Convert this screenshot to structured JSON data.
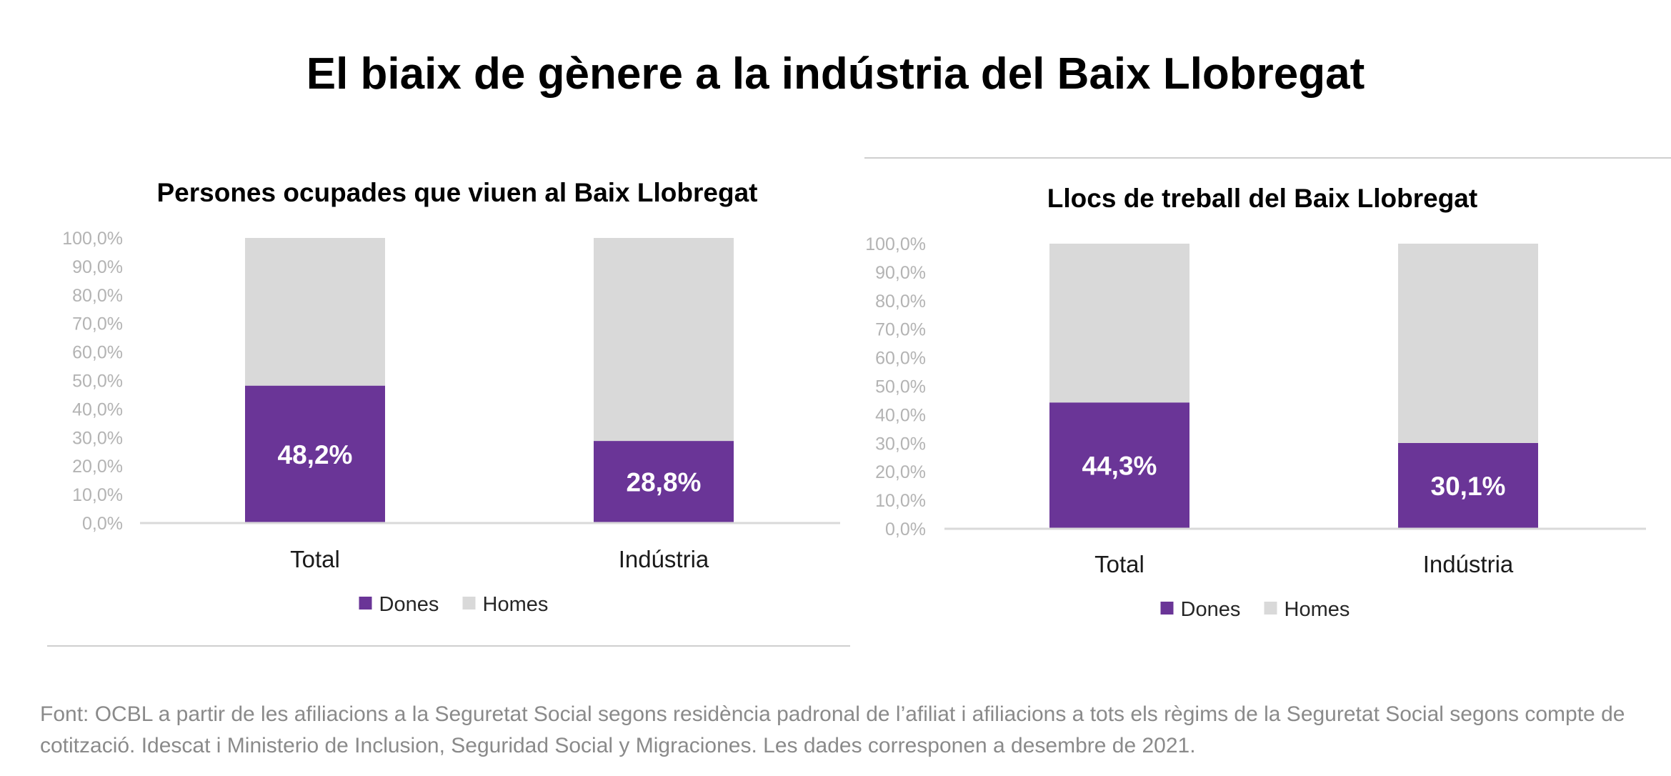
{
  "title": "El biaix de gènere a la indústria del Baix Llobregat",
  "chart_data": [
    {
      "type": "bar",
      "stacked": true,
      "title": "Persones ocupades que viuen al Baix Llobregat",
      "categories": [
        "Total",
        "Indústria"
      ],
      "series": [
        {
          "name": "Dones",
          "values": [
            48.2,
            28.8
          ],
          "labels": [
            "48,2%",
            "28,8%"
          ]
        },
        {
          "name": "Homes",
          "values": [
            51.8,
            71.2
          ]
        }
      ],
      "ylim": [
        0,
        100
      ],
      "yticks": [
        "0,0%",
        "10,0%",
        "20,0%",
        "30,0%",
        "40,0%",
        "50,0%",
        "60,0%",
        "70,0%",
        "80,0%",
        "90,0%",
        "100,0%"
      ],
      "legend": "bottom",
      "grid": false
    },
    {
      "type": "bar",
      "stacked": true,
      "title": "Llocs de treball del Baix Llobregat",
      "categories": [
        "Total",
        "Indústria"
      ],
      "series": [
        {
          "name": "Dones",
          "values": [
            44.3,
            30.1
          ],
          "labels": [
            "44,3%",
            "30,1%"
          ]
        },
        {
          "name": "Homes",
          "values": [
            55.7,
            69.9
          ]
        }
      ],
      "ylim": [
        0,
        100
      ],
      "yticks": [
        "0,0%",
        "10,0%",
        "20,0%",
        "30,0%",
        "40,0%",
        "50,0%",
        "60,0%",
        "70,0%",
        "80,0%",
        "90,0%",
        "100,0%"
      ],
      "legend": "bottom",
      "grid": false
    }
  ],
  "colors": {
    "Dones": "#6a3597",
    "Homes": "#d9d9d9"
  },
  "footnote": "Font: OCBL a partir de les afiliacions a la Seguretat Social segons residència padronal de l’afiliat i afiliacions a tots els règims de la Seguretat Social segons compte de cotització. Idescat i Ministerio de Inclusion, Seguridad Social y Migraciones. Les dades corresponen a desembre de 2021."
}
